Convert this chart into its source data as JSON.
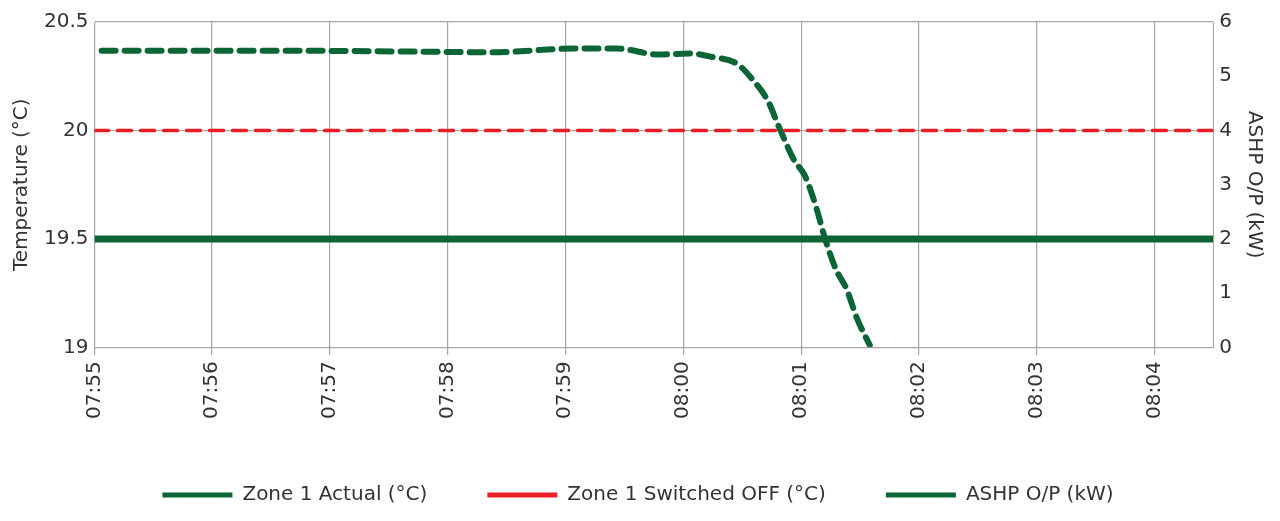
{
  "chart_data": {
    "type": "line",
    "ylabel": "Temperature (°C)",
    "y2label": "ASHP O/P (kW)",
    "xlim": [
      7.9167,
      8.075
    ],
    "xticks": [
      {
        "value": 7.9167,
        "label": "07:55"
      },
      {
        "value": 7.9333,
        "label": "07:56"
      },
      {
        "value": 7.95,
        "label": "07:57"
      },
      {
        "value": 7.9667,
        "label": "07:58"
      },
      {
        "value": 7.9833,
        "label": "07:59"
      },
      {
        "value": 8,
        "label": "08:00"
      },
      {
        "value": 8.0167,
        "label": "08:01"
      },
      {
        "value": 8.0333,
        "label": "08:02"
      },
      {
        "value": 8.05,
        "label": "08:03"
      },
      {
        "value": 8.0667,
        "label": "08:04"
      }
    ],
    "ylim": [
      19,
      20.5
    ],
    "yticks": [
      19,
      19.5,
      20,
      20.5
    ],
    "y2lim": [
      0,
      6
    ],
    "y2ticks": [
      0,
      1,
      2,
      3,
      4,
      5,
      6
    ],
    "grid": true,
    "legend": "bottom",
    "marker": "none",
    "series": [
      {
        "name": "Zone 1 Actual (°C)",
        "color": "#0b6535",
        "line_style": "solid",
        "x": [
          7.9167,
          8.075
        ],
        "values": [
          19.5,
          19.5
        ]
      },
      {
        "name": "Zone 1 Switched OFF (°C)",
        "color": "#ee1c25",
        "line_style": "dashed",
        "x": [
          7.9167,
          8.075
        ],
        "values": [
          20,
          20
        ]
      },
      {
        "name": "ASHP O/P (kW)",
        "color": "#0b6535",
        "line_style": "dashed",
        "axis": "y2",
        "x": [
          7.9177,
          7.9433,
          7.9655,
          7.9728,
          7.9847,
          7.9906,
          7.9965,
          8.0009,
          8.0039,
          8.0076,
          8.0098,
          8.012,
          8.0135,
          8.0157,
          8.0172,
          8.0187,
          8.0201,
          8.0216,
          8.0231,
          8.0246,
          8.0264
        ],
        "values": [
          5.47,
          5.47,
          5.45,
          5.44,
          5.51,
          5.51,
          5.4,
          5.42,
          5.36,
          5.23,
          4.94,
          4.54,
          4.08,
          3.45,
          3.17,
          2.63,
          1.99,
          1.44,
          1.08,
          0.53,
          0.04
        ]
      }
    ]
  }
}
